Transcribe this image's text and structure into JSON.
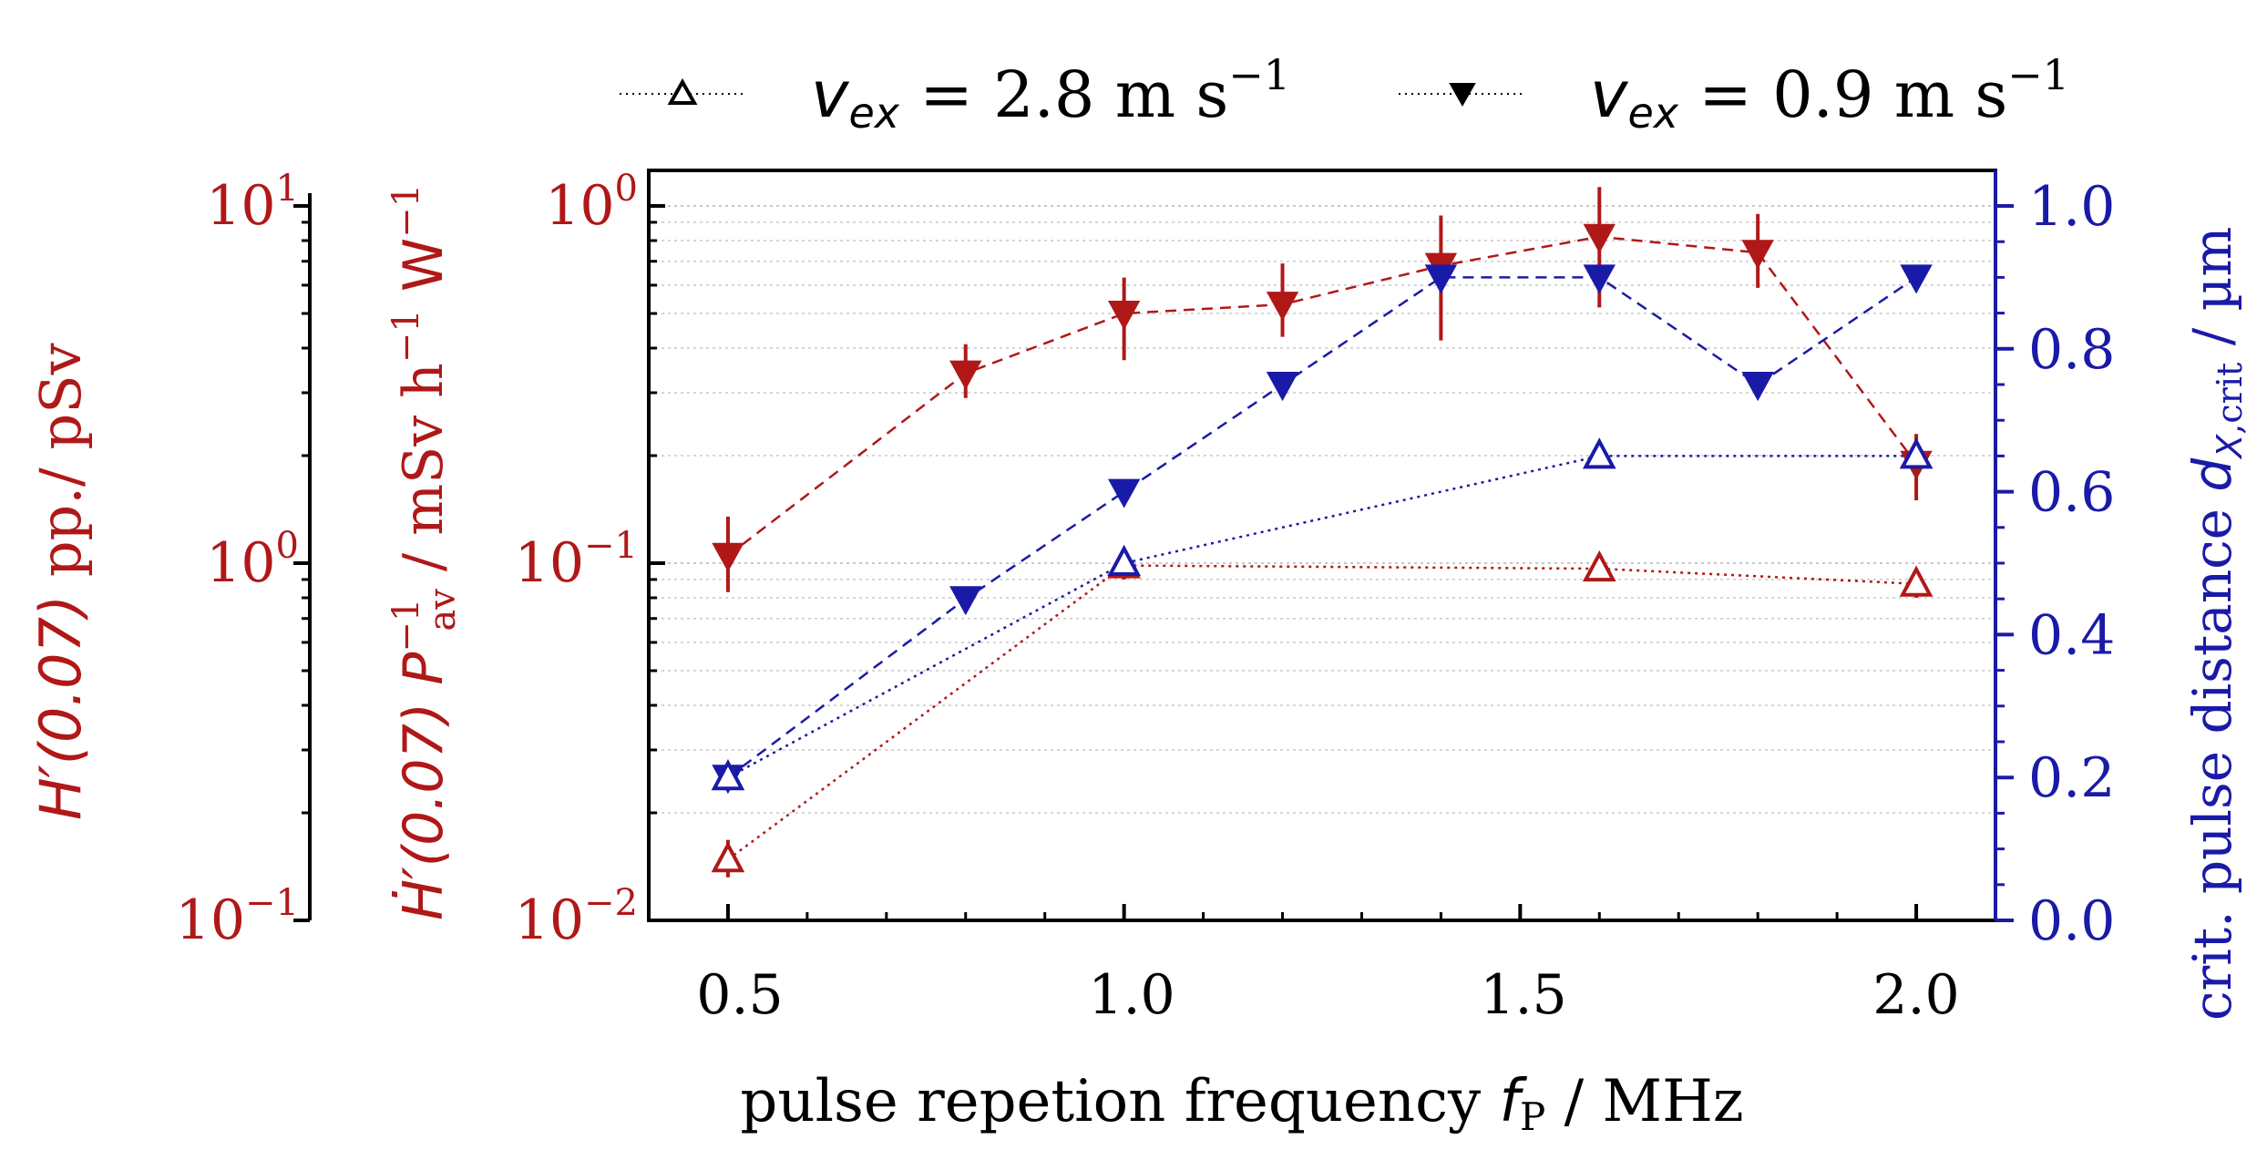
{
  "chart_data": {
    "type": "line",
    "xlabel": {
      "prefix": "pulse repetion frequency ",
      "symbol": "f",
      "subscript": "P",
      "unit": " / MHz"
    },
    "xlim": [
      0.4,
      2.1
    ],
    "x_ticks": [
      "0.5",
      "1.0",
      "1.5",
      "2.0"
    ],
    "y_left_inner": {
      "label": {
        "symbol": "Ḣ′(0.07)",
        "p": " P",
        "p_sup": "−1",
        "p_sub": "av",
        "unit_main": " / mSv h",
        "unit_sup1": "−1",
        "unit_w": " W",
        "unit_sup2": "−1"
      },
      "scale": "log",
      "ylim": [
        0.01,
        1.0
      ],
      "tick_values": [
        0.01,
        0.1,
        1.0
      ],
      "tick_base": [
        "10",
        "10",
        "10"
      ],
      "tick_exp": [
        "−2",
        "−1",
        "0"
      ]
    },
    "y_left_outer": {
      "label": {
        "symbol": "H′(0.07)",
        "unit": " pp./ pSv"
      },
      "scale": "log",
      "ylim": [
        0.1,
        10
      ],
      "tick_values": [
        0.1,
        1,
        10
      ],
      "tick_base": [
        "10",
        "10",
        "10"
      ],
      "tick_exp": [
        "−1",
        "0",
        "1"
      ]
    },
    "y_right": {
      "label": {
        "prefix": "crit. pulse distance ",
        "symbol": "d",
        "sub_x": "X",
        "sub_crit": ",crit",
        "unit": " / µm"
      },
      "ylim": [
        0.0,
        1.0
      ],
      "tick_values": [
        0.0,
        0.2,
        0.4,
        0.6,
        0.8,
        1.0
      ],
      "tick_labels": [
        "0.0",
        "0.2",
        "0.4",
        "0.6",
        "0.8",
        "1.0"
      ]
    },
    "legend": {
      "placement": "top, outside plot",
      "entries": [
        {
          "prefix": "v",
          "sub": "ex",
          "text": " = 2.8 m s",
          "sup": "−1",
          "marker": "triangle-up-open"
        },
        {
          "prefix": "v",
          "sub": "ex",
          "text": " = 0.9 m s",
          "sup": "−1",
          "marker": "triangle-down-filled"
        }
      ]
    },
    "colors": {
      "red": "#b01818",
      "blue": "#1a1aa8",
      "grid": "#c8c8c8",
      "axis": "#000000"
    },
    "series": [
      {
        "name": "dose rate, v_ex = 0.9 m/s",
        "axis": "left_inner",
        "color": "red",
        "marker": "triangle-down-filled",
        "line": "dashed",
        "x": [
          0.5,
          0.8,
          1.0,
          1.2,
          1.4,
          1.6,
          1.8,
          2.0
        ],
        "y": [
          0.105,
          0.34,
          0.5,
          0.53,
          0.68,
          0.82,
          0.74,
          0.19
        ],
        "err_low": [
          0.083,
          0.29,
          0.37,
          0.43,
          0.42,
          0.52,
          0.59,
          0.15
        ],
        "err_high": [
          0.135,
          0.41,
          0.63,
          0.69,
          0.94,
          1.13,
          0.95,
          0.23
        ]
      },
      {
        "name": "dose rate, v_ex = 2.8 m/s",
        "axis": "left_inner",
        "color": "red",
        "marker": "triangle-up-open",
        "line": "dotted",
        "x": [
          0.5,
          1.0,
          1.6,
          2.0
        ],
        "y": [
          0.0148,
          0.0985,
          0.0965,
          0.0875
        ],
        "err_low": [
          0.0132,
          0.09,
          0.089,
          0.08
        ],
        "err_high": [
          0.0168,
          0.107,
          0.104,
          0.094
        ]
      },
      {
        "name": "pulse distance, v_ex = 0.9 m/s",
        "axis": "right",
        "color": "blue",
        "marker": "triangle-down-filled",
        "line": "dashed",
        "x": [
          0.5,
          0.8,
          1.0,
          1.2,
          1.4,
          1.6,
          1.8,
          2.0
        ],
        "y": [
          0.2,
          0.45,
          0.6,
          0.75,
          0.9,
          0.9,
          0.75,
          0.9
        ]
      },
      {
        "name": "pulse distance, v_ex = 2.8 m/s",
        "axis": "right",
        "color": "blue",
        "marker": "triangle-up-open",
        "line": "dotted",
        "x": [
          0.5,
          1.0,
          1.6,
          2.0
        ],
        "y": [
          0.2,
          0.5,
          0.65,
          0.65
        ]
      }
    ]
  }
}
